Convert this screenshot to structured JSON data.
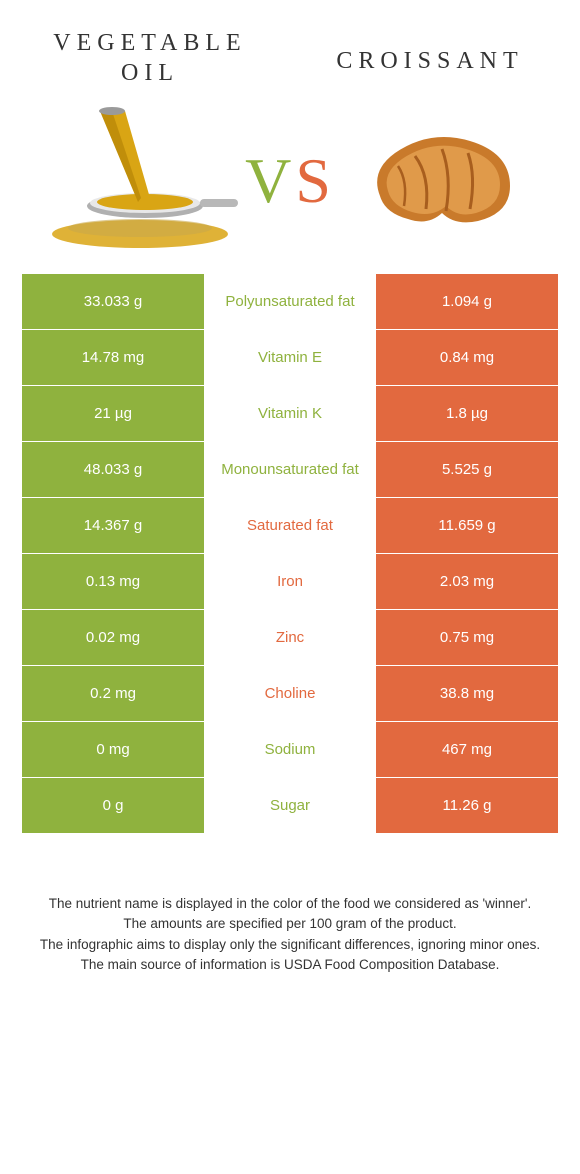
{
  "colors": {
    "left": "#8fb23e",
    "right": "#e2693f",
    "text_dark": "#333333"
  },
  "header": {
    "left_title": "VEGETABLE OIL",
    "right_title": "CROISSANT",
    "vs_v": "V",
    "vs_s": "S"
  },
  "rows": [
    {
      "left": "33.033 g",
      "label": "Polyunsaturated fat",
      "right": "1.094 g",
      "winner": "left"
    },
    {
      "left": "14.78 mg",
      "label": "Vitamin E",
      "right": "0.84 mg",
      "winner": "left"
    },
    {
      "left": "21 µg",
      "label": "Vitamin K",
      "right": "1.8 µg",
      "winner": "left"
    },
    {
      "left": "48.033 g",
      "label": "Monounsaturated fat",
      "right": "5.525 g",
      "winner": "left"
    },
    {
      "left": "14.367 g",
      "label": "Saturated fat",
      "right": "11.659 g",
      "winner": "right"
    },
    {
      "left": "0.13 mg",
      "label": "Iron",
      "right": "2.03 mg",
      "winner": "right"
    },
    {
      "left": "0.02 mg",
      "label": "Zinc",
      "right": "0.75 mg",
      "winner": "right"
    },
    {
      "left": "0.2 mg",
      "label": "Choline",
      "right": "38.8 mg",
      "winner": "right"
    },
    {
      "left": "0 mg",
      "label": "Sodium",
      "right": "467 mg",
      "winner": "left"
    },
    {
      "left": "0 g",
      "label": "Sugar",
      "right": "11.26 g",
      "winner": "left"
    }
  ],
  "footer": {
    "line1": "The nutrient name is displayed in the color of the food we considered as 'winner'.",
    "line2": "The amounts are specified per 100 gram of the product.",
    "line3": "The infographic aims to display only the significant differences, ignoring minor ones.",
    "line4": "The main source of information is USDA Food Composition Database."
  }
}
